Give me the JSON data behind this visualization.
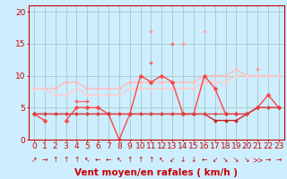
{
  "bg_color": "#cceeff",
  "grid_color": "#aacccc",
  "xlabel": "Vent moyen/en rafales ( km/h )",
  "ylabel_ticks": [
    0,
    5,
    10,
    15,
    20
  ],
  "xlim_min": -0.5,
  "xlim_max": 23.5,
  "ylim_min": 0,
  "ylim_max": 21,
  "x": [
    0,
    1,
    2,
    3,
    4,
    5,
    6,
    7,
    8,
    9,
    10,
    11,
    12,
    13,
    14,
    15,
    16,
    17,
    18,
    19,
    20,
    21,
    22,
    23
  ],
  "series": [
    {
      "color": "#ff9999",
      "linewidth": 0.9,
      "marker": "D",
      "markersize": 2.0,
      "y": [
        8,
        null,
        null,
        null,
        null,
        5,
        null,
        null,
        null,
        null,
        null,
        17,
        null,
        null,
        15,
        null,
        null,
        null,
        null,
        null,
        null,
        11,
        null,
        10
      ]
    },
    {
      "color": "#ffaaaa",
      "linewidth": 0.9,
      "marker": "D",
      "markersize": 2.0,
      "y": [
        8,
        null,
        null,
        null,
        null,
        null,
        null,
        7,
        null,
        null,
        null,
        null,
        null,
        null,
        null,
        null,
        17,
        null,
        null,
        null,
        null,
        null,
        null,
        null
      ]
    },
    {
      "color": "#ffbbbb",
      "linewidth": 1.0,
      "marker": "D",
      "markersize": 2.0,
      "y": [
        8,
        8,
        8,
        9,
        9,
        8,
        8,
        8,
        8,
        9,
        9,
        9,
        9,
        9,
        9,
        9,
        10,
        10,
        10,
        11,
        10,
        10,
        10,
        10
      ]
    },
    {
      "color": "#ffcccc",
      "linewidth": 1.0,
      "marker": "D",
      "markersize": 2.0,
      "y": [
        8,
        8,
        7,
        7,
        8,
        7,
        7,
        7,
        7,
        8,
        8,
        8,
        8,
        8,
        8,
        8,
        9,
        9,
        9,
        10,
        10,
        10,
        10,
        10
      ]
    },
    {
      "color": "#ff6666",
      "linewidth": 0.9,
      "marker": "D",
      "markersize": 2.0,
      "y": [
        null,
        null,
        null,
        null,
        6,
        6,
        null,
        null,
        null,
        null,
        null,
        12,
        null,
        15,
        null,
        null,
        null,
        null,
        null,
        null,
        null,
        null,
        null,
        null
      ]
    },
    {
      "color": "#ff4444",
      "linewidth": 1.0,
      "marker": "D",
      "markersize": 2.5,
      "y": [
        4,
        3,
        null,
        3,
        5,
        5,
        5,
        4,
        0,
        4,
        10,
        9,
        10,
        9,
        4,
        4,
        10,
        8,
        4,
        4,
        4,
        5,
        7,
        5
      ]
    },
    {
      "color": "#cc2222",
      "linewidth": 1.0,
      "marker": "D",
      "markersize": 2.0,
      "y": [
        4,
        4,
        4,
        4,
        4,
        4,
        4,
        4,
        4,
        4,
        4,
        4,
        4,
        4,
        4,
        4,
        4,
        3,
        3,
        3,
        4,
        5,
        5,
        5
      ]
    },
    {
      "color": "#dd4444",
      "linewidth": 0.9,
      "marker": "D",
      "markersize": 1.8,
      "y": [
        4,
        4,
        4,
        4,
        4,
        4,
        4,
        4,
        4,
        4,
        4,
        4,
        4,
        4,
        4,
        4,
        4,
        4,
        4,
        4,
        4,
        5,
        5,
        5
      ]
    }
  ],
  "wind_symbols": [
    "↗",
    "→",
    "↑",
    "↑",
    "↑",
    "↖",
    "←",
    "←",
    "↖",
    "↑",
    "↑",
    "↑",
    "↖",
    "↙",
    "↓",
    "↓",
    "←",
    "↙",
    "↘",
    "↘",
    "↘",
    ">>",
    "→",
    "→"
  ],
  "tick_fontsize": 6.5,
  "label_fontsize": 7.5,
  "arrow_fontsize": 5.5
}
